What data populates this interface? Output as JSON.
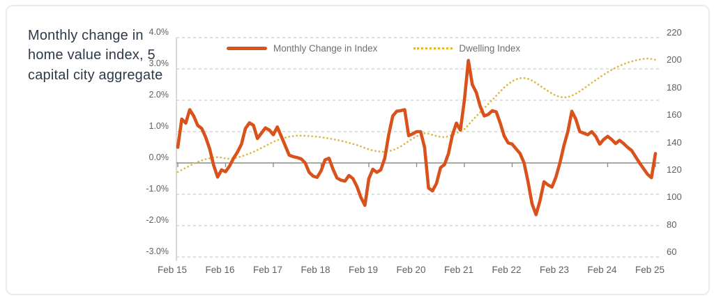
{
  "title": "Monthly change in home value index, 5 capital city aggregate",
  "legend": [
    {
      "label": "Monthly Change in Index",
      "style": "solid",
      "color": "#d9521c"
    },
    {
      "label": "Dwelling Index",
      "style": "dotted",
      "color": "#e0b63c"
    }
  ],
  "axes": {
    "left_ticks": [
      "4.0%",
      "3.0%",
      "2.0%",
      "1.0%",
      "0.0%",
      "-1.0%",
      "-2.0%",
      "-3.0%"
    ],
    "right_ticks": [
      "220",
      "200",
      "180",
      "160",
      "140",
      "120",
      "100",
      "80",
      "60"
    ],
    "x_ticks": [
      "Feb 15",
      "Feb 16",
      "Feb 17",
      "Feb 18",
      "Feb 19",
      "Feb 20",
      "Feb 21",
      "Feb 22",
      "Feb 23",
      "Feb 24",
      "Feb 25"
    ]
  },
  "chart_data": {
    "type": "line",
    "title": "Monthly change in home value index, 5 capital city aggregate",
    "x_start": "Feb 2015",
    "x_end": "Feb 2025",
    "x_interval": "monthly",
    "grid": "horizontal-dashed",
    "legend_position": "top-center",
    "left_axis": {
      "label_format": "percent",
      "min": -3.0,
      "max": 4.0,
      "tick_step": 1.0
    },
    "right_axis": {
      "min": 60,
      "max": 220,
      "tick_step": 20
    },
    "series": [
      {
        "name": "Monthly Change in Index",
        "axis": "left",
        "style": "solid",
        "color": "#d9521c",
        "values": [
          0.5,
          1.4,
          1.27,
          1.7,
          1.5,
          1.2,
          1.1,
          0.82,
          0.45,
          -0.07,
          -0.45,
          -0.22,
          -0.28,
          -0.1,
          0.15,
          0.35,
          0.6,
          1.1,
          1.28,
          1.2,
          0.78,
          0.95,
          1.12,
          1.05,
          0.9,
          1.15,
          0.85,
          0.55,
          0.25,
          0.2,
          0.17,
          0.13,
          0.0,
          -0.3,
          -0.42,
          -0.46,
          -0.25,
          0.1,
          0.15,
          -0.2,
          -0.48,
          -0.55,
          -0.58,
          -0.4,
          -0.5,
          -0.75,
          -1.1,
          -1.35,
          -0.5,
          -0.2,
          -0.3,
          -0.22,
          0.15,
          0.9,
          1.5,
          1.65,
          1.67,
          1.7,
          0.87,
          0.93,
          1.0,
          1.0,
          0.5,
          -0.8,
          -0.89,
          -0.65,
          -0.15,
          -0.05,
          0.3,
          0.9,
          1.27,
          1.05,
          2.0,
          3.27,
          2.5,
          2.25,
          1.8,
          1.5,
          1.55,
          1.67,
          1.63,
          1.27,
          0.86,
          0.64,
          0.6,
          0.45,
          0.3,
          0.0,
          -0.6,
          -1.3,
          -1.65,
          -1.2,
          -0.6,
          -0.7,
          -0.77,
          -0.45,
          0.0,
          0.55,
          1.0,
          1.65,
          1.4,
          1.0,
          0.95,
          0.9,
          1.0,
          0.85,
          0.6,
          0.75,
          0.85,
          0.75,
          0.62,
          0.72,
          0.62,
          0.5,
          0.4,
          0.2,
          0.0,
          -0.18,
          -0.36,
          -0.47,
          0.3
        ]
      },
      {
        "name": "Dwelling Index",
        "axis": "right",
        "style": "dotted",
        "color": "#e0b63c",
        "values": [
          122,
          123.5,
          125,
          126.5,
          128,
          129.3,
          130.4,
          131.3,
          132,
          132.5,
          132.8,
          132.5,
          131.8,
          131.6,
          131.9,
          132.5,
          133.4,
          134.4,
          135.5,
          136.6,
          138,
          139.5,
          141,
          142.5,
          144,
          145.2,
          146.2,
          147,
          147.7,
          148.2,
          148.5,
          148.5,
          148.4,
          148.2,
          148,
          147.7,
          147.3,
          146.9,
          146.4,
          145.9,
          145.3,
          144.7,
          144,
          143.3,
          142.5,
          141.6,
          140.6,
          139.5,
          138.5,
          137.7,
          137.1,
          136.8,
          136.7,
          137.1,
          137.9,
          139.1,
          140.6,
          142.5,
          144.5,
          146.3,
          147.9,
          149.3,
          150.2,
          149.9,
          149,
          148.2,
          147.6,
          147.4,
          147.9,
          148.9,
          150.3,
          151.6,
          153.2,
          156.2,
          159.6,
          162.6,
          165.6,
          168.6,
          171.6,
          174.6,
          177.6,
          180.6,
          183.6,
          186.1,
          188.1,
          189.6,
          190.4,
          190.5,
          189.9,
          188.7,
          186.9,
          184.9,
          182.9,
          181,
          179.2,
          177.7,
          176.7,
          176.3,
          176.6,
          177.6,
          179.1,
          180.8,
          182.8,
          185,
          187,
          189,
          191,
          193,
          194.8,
          196.5,
          198,
          199.4,
          200.6,
          201.7,
          202.6,
          203.4,
          204,
          204.5,
          204.7,
          204.4,
          203.8
        ]
      }
    ]
  },
  "colors": {
    "grid_dashed": "#cccccc",
    "zero_line": "#8c8c8c",
    "axis_line": "#c9c9c9",
    "axis_text": "#5f5f5f",
    "title_text": "#2d3948",
    "card_border": "#ebebeb",
    "background": "#ffffff"
  }
}
